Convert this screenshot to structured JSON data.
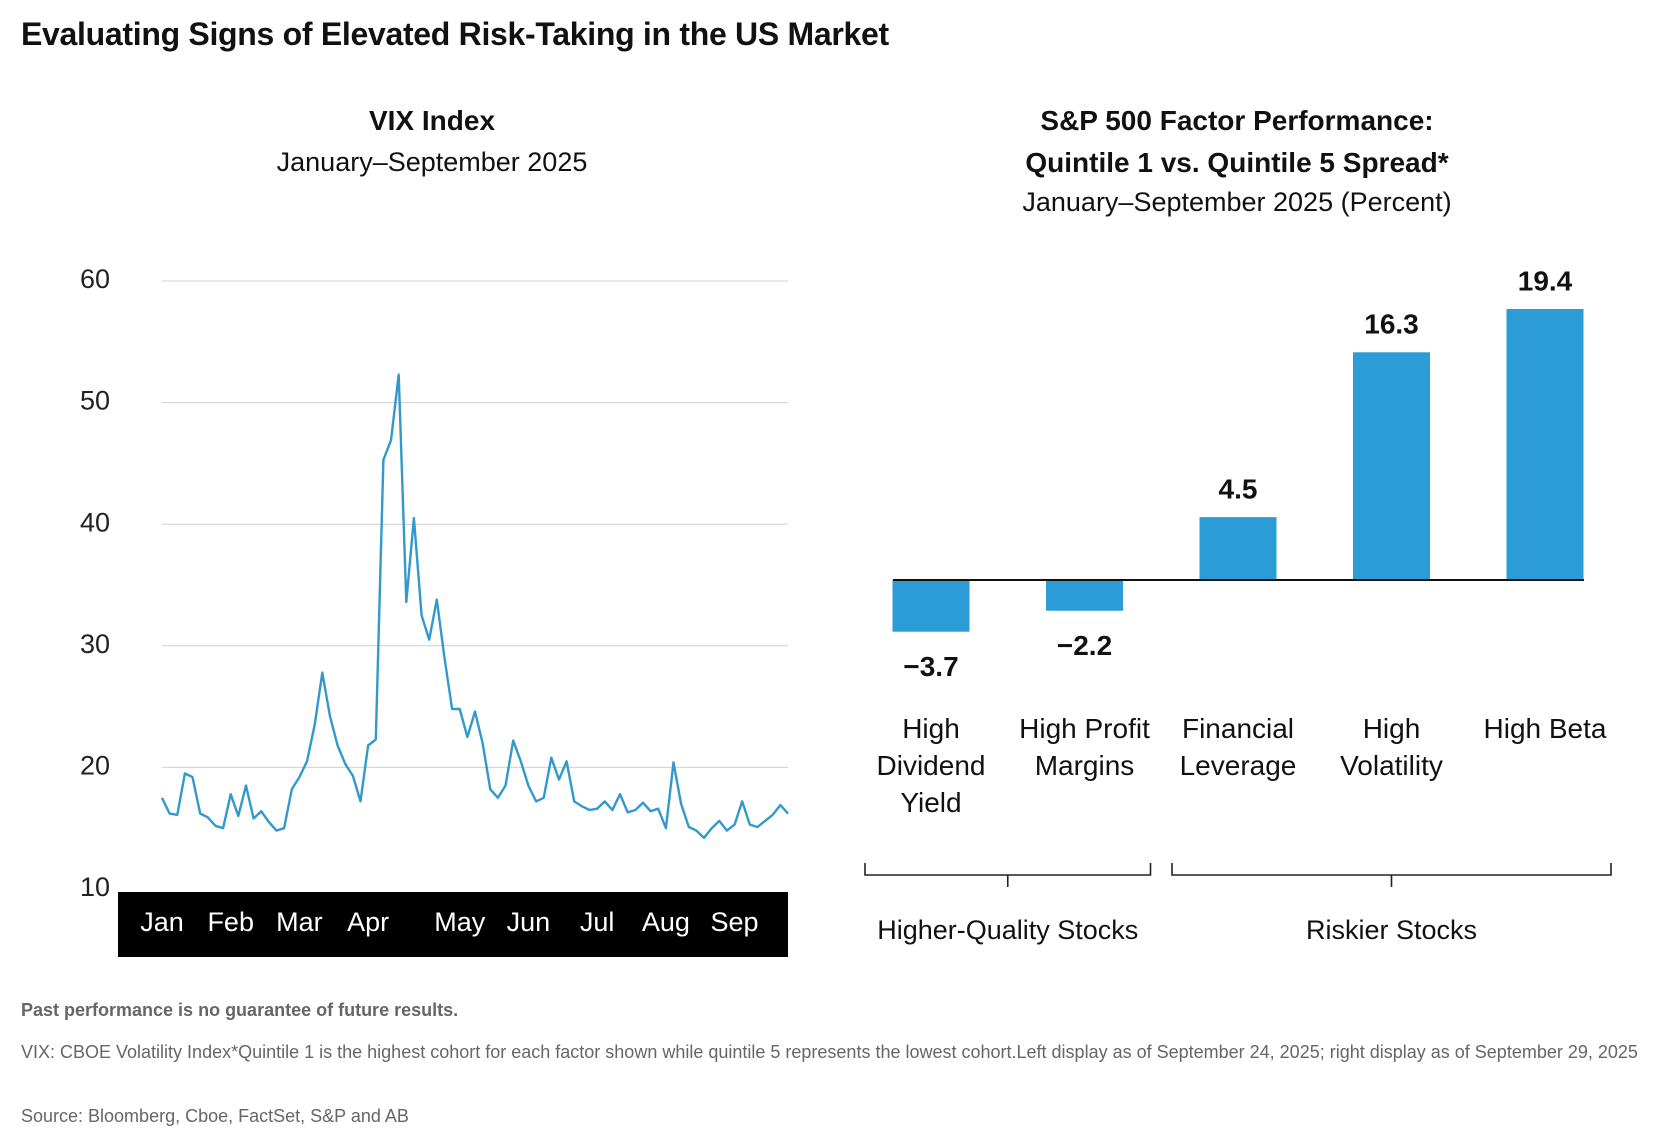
{
  "title": "Evaluating Signs of Elevated Risk-Taking in the US Market",
  "chart_data": [
    {
      "type": "line",
      "title": "VIX Index",
      "subtitle": "January–September 2025",
      "categories": [
        "Jan",
        null,
        null,
        null,
        null,
        null,
        null,
        null,
        null,
        "Feb",
        null,
        null,
        null,
        null,
        null,
        null,
        null,
        null,
        "Mar",
        null,
        null,
        null,
        null,
        null,
        null,
        null,
        null,
        "Apr",
        null,
        null,
        null,
        null,
        null,
        null,
        null,
        null,
        null,
        null,
        null,
        "May",
        null,
        null,
        null,
        null,
        null,
        null,
        null,
        null,
        "Jun",
        null,
        null,
        null,
        null,
        null,
        null,
        null,
        null,
        "Jul",
        null,
        null,
        null,
        null,
        null,
        null,
        null,
        null,
        "Aug",
        null,
        null,
        null,
        null,
        null,
        null,
        null,
        null,
        "Sep",
        null,
        null,
        null,
        null,
        null,
        null,
        null
      ],
      "values": [
        17.5,
        16.2,
        16.1,
        19.5,
        19.2,
        16.2,
        15.9,
        15.2,
        15.0,
        17.8,
        16.0,
        18.5,
        15.8,
        16.4,
        15.5,
        14.8,
        15.0,
        18.2,
        19.2,
        20.5,
        23.5,
        27.8,
        24.2,
        21.8,
        20.3,
        19.3,
        17.2,
        21.8,
        22.3,
        45.3,
        46.9,
        52.3,
        33.6,
        40.5,
        32.5,
        30.5,
        33.8,
        29.0,
        24.8,
        24.8,
        22.5,
        24.6,
        22.0,
        18.2,
        17.5,
        18.5,
        22.2,
        20.5,
        18.5,
        17.2,
        17.5,
        20.8,
        19.0,
        20.5,
        17.2,
        16.8,
        16.5,
        16.6,
        17.2,
        16.5,
        17.8,
        16.3,
        16.5,
        17.1,
        16.4,
        16.6,
        15.0,
        20.4,
        17.0,
        15.1,
        14.8,
        14.2,
        15.0,
        15.6,
        14.8,
        15.3,
        17.2,
        15.3,
        15.1,
        15.6,
        16.1,
        16.9,
        16.2
      ],
      "color": "#3399cc",
      "ylim": [
        10,
        60
      ],
      "yticks": [
        10,
        20,
        30,
        40,
        50,
        60
      ],
      "grid": true
    },
    {
      "type": "bar",
      "title": "S&P 500 Factor Performance: Quintile 1 vs. Quintile 5 Spread*",
      "subtitle": "January–September 2025 (Percent)",
      "categories": [
        "High Dividend Yield",
        "High Profit Margins",
        "Financial Leverage",
        "High Volatility",
        "High Beta"
      ],
      "values": [
        -3.7,
        -2.2,
        4.5,
        16.3,
        19.4
      ],
      "value_labels": [
        "−3.7",
        "−2.2",
        "4.5",
        "16.3",
        "19.4"
      ],
      "color": "#2b9cd6",
      "groups": [
        {
          "name": "Higher-Quality Stocks",
          "span": 2
        },
        {
          "name": "Riskier Stocks",
          "span": 3
        }
      ]
    }
  ],
  "footer": {
    "disclaimer": "Past performance is no guarantee of future results.",
    "note": "VIX: CBOE Volatility Index*Quintile 1 is the highest cohort for each factor shown while quintile 5 represents the lowest cohort.Left display as of September 24, 2025; right display as of September 29, 2025",
    "source": "Source: Bloomberg, Cboe, FactSet, S&P and AB"
  }
}
